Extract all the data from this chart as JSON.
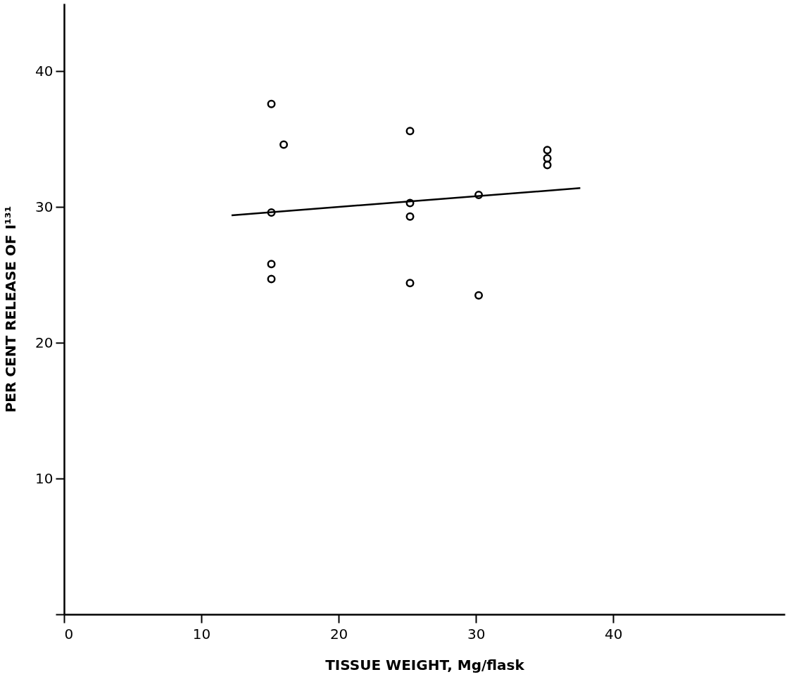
{
  "chart_data": {
    "type": "scatter",
    "xlabel": "TISSUE WEIGHT,  Mg/flask",
    "ylabel": "PER CENT RELEASE OF I¹³¹",
    "xlim": [
      0,
      52.5
    ],
    "ylim": [
      0,
      45
    ],
    "xticks": [
      0,
      10,
      20,
      30,
      40
    ],
    "yticks": [
      {
        "value": 0,
        "label": null
      },
      10,
      20,
      30,
      40
    ],
    "grid": false,
    "series": [
      {
        "marker": "circle",
        "color": "#000000",
        "x": [
          15.1,
          16.0,
          15.1,
          15.1,
          15.1,
          25.2,
          35.2,
          35.2,
          35.2,
          25.2,
          25.2,
          30.2,
          25.2,
          30.2
        ],
        "values": [
          37.6,
          34.6,
          29.6,
          25.8,
          24.7,
          35.6,
          34.2,
          33.6,
          33.1,
          30.3,
          29.3,
          30.9,
          24.4,
          23.5
        ]
      },
      {
        "type": "line",
        "marker": "none",
        "color": "#000000",
        "x": [
          12.2,
          37.6
        ],
        "values": [
          29.4,
          31.4
        ]
      }
    ]
  }
}
